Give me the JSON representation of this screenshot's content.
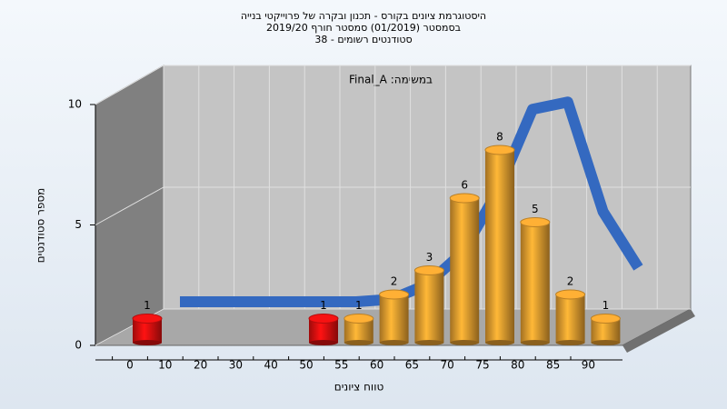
{
  "chart_data": {
    "type": "bar3d",
    "title": [
      "היסטוגרמת ציונים בקורס - תכנון ובקרה של פרוייקטי בנייה",
      "בסמסטר (01/2019)  סמסטר חורף 2019/20",
      "סטודנטים רשומים - 38"
    ],
    "annotation": "במשימה: Final_A",
    "x_label": "טווח ציונים",
    "y_label": "מספר סטודנטים",
    "categories": [
      "0",
      "10",
      "20",
      "30",
      "40",
      "50",
      "55",
      "60",
      "65",
      "70",
      "75",
      "80",
      "85",
      "90"
    ],
    "values": [
      1,
      null,
      null,
      null,
      null,
      1,
      1,
      2,
      3,
      6,
      8,
      5,
      2,
      1
    ],
    "colors": [
      "#e01010",
      null,
      null,
      null,
      null,
      "#e01010",
      "#e8a030",
      "#e8a030",
      "#e8a030",
      "#e8a030",
      "#e8a030",
      "#e8a030",
      "#e8a030",
      "#e8a030"
    ],
    "curve": {
      "color": "#3469c0",
      "values": [
        0.3,
        0.3,
        0.3,
        0.3,
        0.3,
        0.3,
        0.4,
        1.0,
        2.3,
        4.8,
        8.2,
        8.5,
        4.0,
        1.7
      ]
    },
    "ylim": [
      0,
      10
    ],
    "yticks": [
      0,
      5,
      10
    ],
    "grid": true
  }
}
